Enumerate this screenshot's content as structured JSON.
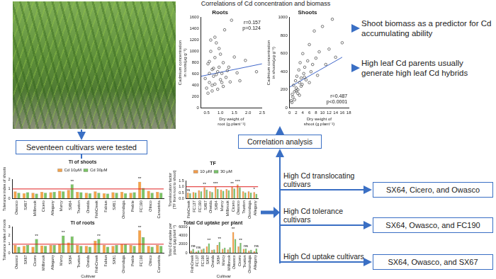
{
  "labels": {
    "correlation_title": "Correlations of Cd concentration and biomass",
    "finding_1": "Shoot biomass as a predictor for Cd accumulating ability",
    "finding_2": "High leaf Cd parents usually generate high leaf Cd hybrids",
    "cultivars_tested": "Seventeen cultivars were tested",
    "correlation_analysis": "Correlation analysis"
  },
  "branches": [
    {
      "label": "High Cd translocating cultivars",
      "result": "SX64, Cicero, and Owasco"
    },
    {
      "label": "High Cd tolerance cultivars",
      "result": "SX64, Owasco, and FC190"
    },
    {
      "label": "High Cd uptake cultivars",
      "result": "SX64, Owasco, and SX67"
    }
  ],
  "chart_data": [
    {
      "type": "scatter",
      "title": "Roots",
      "x_label": "Dry weight of root (g.plant⁻¹)",
      "y_label": "Cadmium concentration in roots(μg g⁻¹)",
      "x": [
        0.45,
        0.5,
        0.55,
        0.6,
        0.6,
        0.65,
        0.7,
        0.7,
        0.75,
        0.8,
        0.8,
        0.85,
        0.9,
        0.9,
        0.95,
        1.0,
        1.0,
        1.05,
        1.1,
        1.1,
        1.15,
        1.2,
        1.25,
        1.3,
        1.35,
        1.4,
        1.5,
        1.6,
        1.7,
        1.9,
        2.3,
        0.55,
        0.65,
        0.75,
        0.85,
        0.95,
        1.05,
        0.6,
        0.7,
        0.8
      ],
      "values": [
        520,
        350,
        780,
        610,
        450,
        1000,
        300,
        680,
        560,
        420,
        890,
        1150,
        640,
        330,
        720,
        500,
        950,
        610,
        380,
        800,
        1380,
        540,
        660,
        720,
        460,
        1550,
        900,
        620,
        480,
        840,
        640,
        260,
        1200,
        700,
        590,
        1050,
        450,
        820,
        400,
        1250
      ],
      "color": "#555555",
      "marker": "circle",
      "fit_line": {
        "x": [
          0.3,
          2.5
        ],
        "values": [
          560,
          780
        ],
        "color": "#3f66c9"
      },
      "annotation": [
        "r=0.157",
        "p=0.124"
      ],
      "xlim": [
        0.3,
        2.5
      ],
      "xticks": [
        0.5,
        {
          "value": 1,
          "label": "1.0"
        },
        1.5,
        {
          "value": 2,
          "label": "2.0"
        },
        2.5
      ],
      "ylim": [
        0,
        1600
      ],
      "yticks": [
        0,
        200,
        400,
        600,
        800,
        1000,
        1200,
        1400,
        1600
      ],
      "grid": false
    },
    {
      "type": "scatter",
      "title": "Shoots",
      "x_label": "Dry weight of shoot (g.plant⁻¹)",
      "y_label": "Cadmium concentration in shoots(μg g⁻¹)",
      "x": [
        0.5,
        0.8,
        1,
        1.2,
        1.5,
        1.8,
        2,
        2.2,
        2.5,
        2.8,
        3,
        3.2,
        3.5,
        3.8,
        4,
        4.3,
        4.6,
        5,
        5.5,
        6,
        6.5,
        7,
        7.5,
        8,
        8.5,
        9,
        10,
        11,
        12,
        13,
        14,
        16,
        1.5,
        2.5,
        3.5,
        4.5,
        0.7,
        2,
        3,
        6
      ],
      "values": [
        80,
        150,
        120,
        250,
        180,
        300,
        220,
        350,
        200,
        420,
        280,
        500,
        330,
        260,
        600,
        380,
        450,
        310,
        520,
        700,
        400,
        480,
        850,
        550,
        360,
        620,
        900,
        480,
        650,
        980,
        560,
        720,
        90,
        160,
        240,
        340,
        60,
        190,
        140,
        280
      ],
      "color": "#555555",
      "marker": "circle",
      "fit_line": {
        "x": [
          0,
          16
        ],
        "values": [
          230,
          560
        ],
        "color": "#3f66c9"
      },
      "annotation": [
        "r=0.487",
        "p<0.0001"
      ],
      "xlim": [
        0,
        18
      ],
      "xticks": [
        0,
        2,
        4,
        6,
        8,
        10,
        12,
        14,
        16,
        18
      ],
      "ylim": [
        0,
        1000
      ],
      "yticks": [
        0,
        200,
        400,
        600,
        800,
        1000
      ],
      "grid": false
    },
    {
      "type": "bar",
      "title": "TI of shoots",
      "y_label": "Tolerance index of shoots",
      "categories": [
        "Owasco",
        "SX67",
        "Millbrook",
        "Cicero",
        "Allegany",
        "Marcy",
        "SX64",
        "Truxton",
        "Oneida",
        "FishCreek",
        "Fabius",
        "SX61",
        "Onondaga",
        "Preble",
        "FC190",
        "Otisco",
        "Canastota"
      ],
      "series": [
        {
          "name": "Cd 10μM",
          "color": "#f5a34a",
          "values": [
            0.75,
            0.55,
            0.6,
            0.7,
            0.65,
            0.8,
            0.9,
            0.7,
            0.6,
            0.75,
            0.55,
            0.65,
            0.7,
            0.6,
            1.75,
            0.8,
            0.7
          ]
        },
        {
          "name": "Cd 30μM",
          "color": "#7cc466",
          "values": [
            0.6,
            0.65,
            0.5,
            0.6,
            0.7,
            0.75,
            1.5,
            0.65,
            0.55,
            0.6,
            0.5,
            0.6,
            0.55,
            0.65,
            1.1,
            0.6,
            0.6
          ]
        }
      ],
      "annotations": [
        {
          "category": "SX64",
          "series": 1,
          "text": "**"
        },
        {
          "category": "FC190",
          "series": 0,
          "text": "**"
        }
      ],
      "reference_line": 1,
      "legend": "top",
      "ylim": [
        0,
        2
      ],
      "yticks": [
        0,
        1,
        2
      ],
      "grid": false
    },
    {
      "type": "bar",
      "title": "TI of roots",
      "y_label": "Tolerance index of roots",
      "x_label": "Cultivar",
      "categories": [
        "Owasco",
        "SX67",
        "Cicero",
        "Millbrook",
        "Allegany",
        "Marcy",
        "SX64",
        "Truxton",
        "Oneida",
        "FishCreek",
        "Fabius",
        "SX61",
        "Onondaga",
        "Preble",
        "FC190",
        "Otisco",
        "Canastota"
      ],
      "series": [
        {
          "color": "#f5a34a",
          "values": [
            0.9,
            0.8,
            0.7,
            0.85,
            0.9,
            1.0,
            1.2,
            0.9,
            0.8,
            1.4,
            0.9,
            0.8,
            1.0,
            0.9,
            2.6,
            0.8,
            0.9
          ]
        },
        {
          "color": "#7cc466",
          "values": [
            0.7,
            0.9,
            1.6,
            0.8,
            0.9,
            2.0,
            1.9,
            0.8,
            0.7,
            1.6,
            0.7,
            0.9,
            1.0,
            0.8,
            1.8,
            0.7,
            0.8
          ]
        }
      ],
      "annotations": [
        {
          "category": "Cicero",
          "series": 1,
          "text": "**"
        },
        {
          "category": "Marcy",
          "series": 1,
          "text": "**"
        },
        {
          "category": "FishCreek",
          "series": 1,
          "text": "**"
        },
        {
          "category": "FC190",
          "series": 0,
          "text": "**"
        }
      ],
      "reference_line": 1,
      "ylim": [
        0,
        3
      ],
      "yticks": [
        0,
        1,
        2,
        3
      ],
      "grid": false
    },
    {
      "type": "bar",
      "title": "TF",
      "y_label": "Translocation factor (TF from root to shoot)",
      "categories": [
        "FishCreek",
        "FC137",
        "FC190",
        "SX67",
        "Oneida",
        "SX64",
        "Marcy",
        "Millbrook",
        "Cicero",
        "Owasco",
        "Truxton",
        "Onondaga",
        "Allegany"
      ],
      "series": [
        {
          "name": "10 μM",
          "color": "#f39c4a",
          "values": [
            0.5,
            0.55,
            0.7,
            0.95,
            0.6,
            1.0,
            0.75,
            0.8,
            1.0,
            1.2,
            0.6,
            0.6,
            0.55
          ]
        },
        {
          "name": "30 μM",
          "color": "#79c26a",
          "values": [
            0.45,
            0.5,
            0.6,
            0.75,
            0.55,
            0.8,
            0.65,
            0.7,
            0.85,
            0.95,
            0.5,
            0.5,
            0.4
          ]
        }
      ],
      "annotations": [
        {
          "category": "FishCreek",
          "series": 0,
          "text": "ns"
        },
        {
          "category": "SX67",
          "series": 0,
          "text": "**"
        },
        {
          "category": "SX64",
          "series": 0,
          "text": "***"
        },
        {
          "category": "Cicero",
          "series": 0,
          "text": "**"
        },
        {
          "category": "Owasco",
          "series": 0,
          "text": "***"
        },
        {
          "category": "Allegany",
          "series": 0,
          "text": "*"
        }
      ],
      "reference_line": 1,
      "legend": "top",
      "ylim": [
        0,
        1.5
      ],
      "yticks": [
        {
          "value": 0,
          "label": "0.0"
        },
        0.5,
        {
          "value": 1,
          "label": "1.0"
        },
        1.5
      ],
      "grid": false
    },
    {
      "type": "bar",
      "title": "Total Cd uptake per plant",
      "y_label": "Total Cd uptake per plant (μg plant⁻¹)",
      "x_label": "Cultivar",
      "categories": [
        "FishCreek",
        "FC137",
        "FC190",
        "SX67",
        "Oneida",
        "SX64",
        "Marcy",
        "Millbrook",
        "Owasco",
        "Cicero",
        "Truxton",
        "Onondaga",
        "Allegany"
      ],
      "series": [
        {
          "color": "#f39c4a",
          "values": [
            500,
            300,
            800,
            1500,
            700,
            1800,
            900,
            800,
            4800,
            1500,
            900,
            500,
            400
          ]
        },
        {
          "color": "#79c26a",
          "values": [
            900,
            600,
            1000,
            2200,
            800,
            2500,
            1200,
            1300,
            3200,
            2300,
            1000,
            700,
            1000
          ]
        }
      ],
      "annotations": [
        {
          "category": "FishCreek",
          "series": 1,
          "text": "ns"
        },
        {
          "category": "FC137",
          "series": 1,
          "text": "ns"
        },
        {
          "category": "SX67",
          "series": 1,
          "text": "**"
        },
        {
          "category": "SX64",
          "series": 1,
          "text": "**"
        },
        {
          "category": "Owasco",
          "series": 0,
          "text": "**"
        },
        {
          "category": "Cicero",
          "series": 1,
          "text": "**"
        },
        {
          "category": "Truxton",
          "series": 1,
          "text": "ns"
        },
        {
          "category": "Allegany",
          "series": 1,
          "text": "ns"
        }
      ],
      "ylim": [
        0,
        6000
      ],
      "yticks": [
        0,
        2000,
        4000,
        6000
      ],
      "grid": false
    }
  ]
}
